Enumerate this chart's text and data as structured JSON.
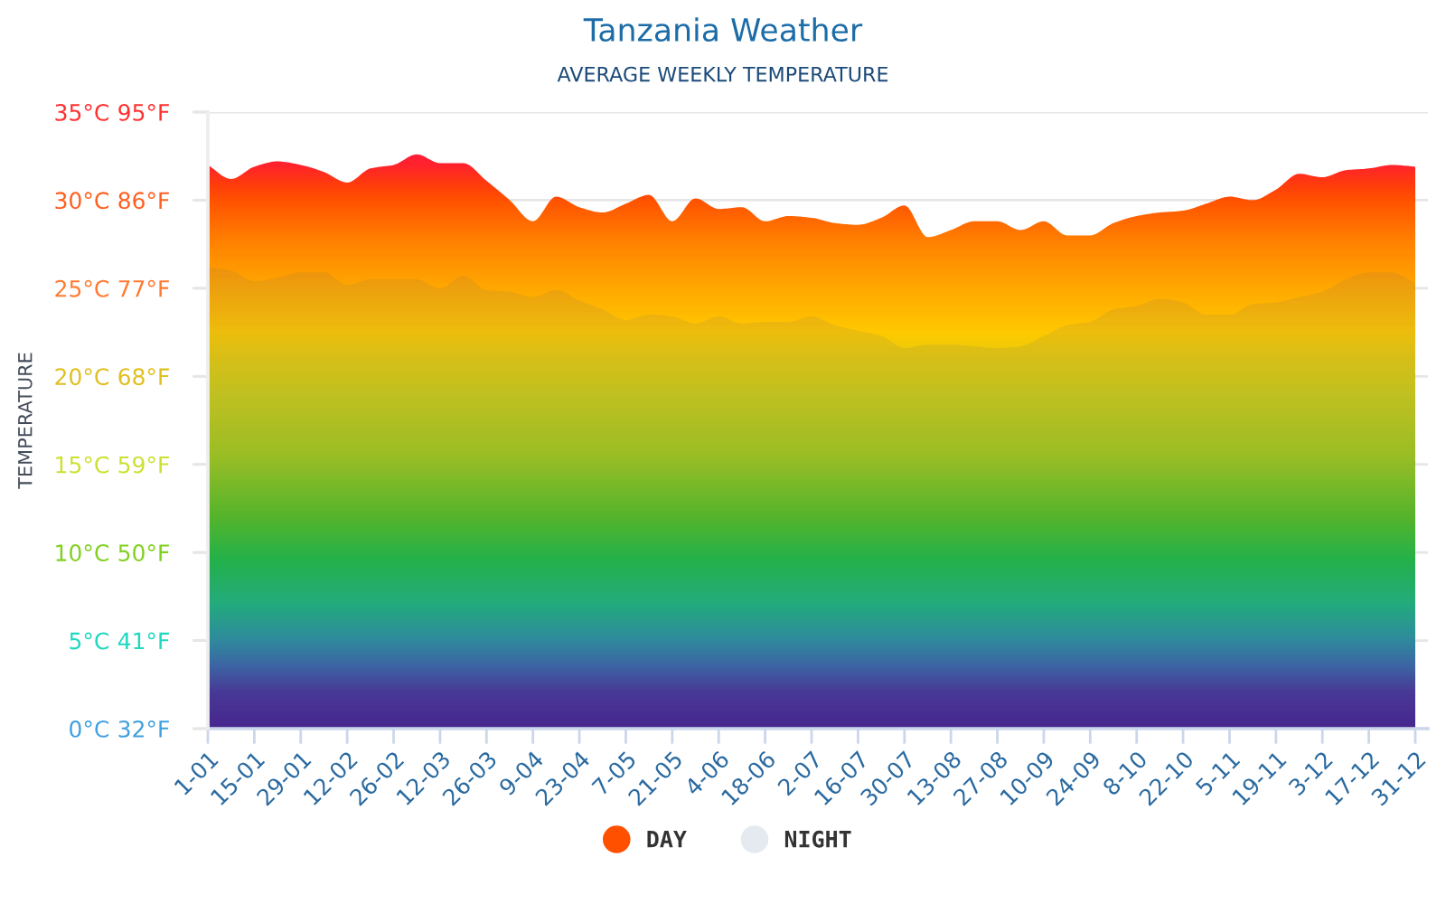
{
  "chart_data": {
    "type": "area",
    "title": "Tanzania Weather",
    "subtitle": "AVERAGE WEEKLY TEMPERATURE",
    "ylabel": "TEMPERATURE",
    "categories": [
      "1-01",
      null,
      "15-01",
      null,
      "29-01",
      null,
      "12-02",
      null,
      "26-02",
      null,
      "12-03",
      null,
      "26-03",
      null,
      "9-04",
      null,
      "23-04",
      null,
      "7-05",
      null,
      "21-05",
      null,
      "4-06",
      null,
      "18-06",
      null,
      "2-07",
      null,
      "16-07",
      null,
      "30-07",
      null,
      "13-08",
      null,
      "27-08",
      null,
      "10-09",
      null,
      "24-09",
      null,
      "8-10",
      null,
      "22-10",
      null,
      "5-11",
      null,
      "19-11",
      null,
      "3-12",
      null,
      "17-12",
      null,
      "31-12"
    ],
    "series": [
      {
        "name": "DAY",
        "color": "#ff5000",
        "values": [
          32.0,
          31.2,
          31.9,
          32.2,
          32.0,
          31.6,
          31.0,
          31.8,
          32.0,
          32.6,
          32.1,
          32.1,
          31.1,
          30.0,
          28.8,
          30.2,
          29.6,
          29.3,
          29.8,
          30.3,
          28.8,
          30.1,
          29.5,
          29.6,
          28.8,
          29.1,
          29.0,
          28.7,
          28.6,
          29.0,
          29.7,
          27.9,
          28.3,
          28.8,
          28.8,
          28.3,
          28.8,
          28.0,
          28.0,
          28.7,
          29.1,
          29.3,
          29.4,
          29.8,
          30.2,
          30.0,
          30.6,
          31.5,
          31.3,
          31.7,
          31.8,
          32.0,
          31.9
        ]
      },
      {
        "name": "NIGHT",
        "color": "#e5eaf0",
        "values": [
          26.2,
          26.0,
          25.4,
          25.6,
          25.9,
          25.9,
          25.2,
          25.5,
          25.5,
          25.5,
          25.0,
          25.7,
          24.9,
          24.8,
          24.5,
          24.9,
          24.3,
          23.8,
          23.2,
          23.5,
          23.4,
          23.0,
          23.4,
          23.0,
          23.1,
          23.1,
          23.4,
          22.9,
          22.6,
          22.3,
          21.6,
          21.8,
          21.8,
          21.7,
          21.6,
          21.7,
          22.3,
          22.9,
          23.1,
          23.8,
          24.0,
          24.4,
          24.2,
          23.5,
          23.5,
          24.1,
          24.2,
          24.5,
          24.8,
          25.5,
          25.9,
          25.9,
          25.3
        ]
      }
    ],
    "ylim": [
      0,
      35
    ],
    "yticks": [
      {
        "value": 0,
        "label": "0°C"
      },
      {
        "value": 5,
        "label": "5°C"
      },
      {
        "value": 10,
        "label": "10°C"
      },
      {
        "value": 15,
        "label": "15°C"
      },
      {
        "value": 20,
        "label": "20°C"
      },
      {
        "value": 25,
        "label": "25°C"
      },
      {
        "value": 30,
        "label": "30°C"
      },
      {
        "value": 35,
        "label": "35°C"
      }
    ],
    "y2lim": [
      32,
      95
    ],
    "y2ticks": [
      {
        "value": 32,
        "label": "32°F"
      },
      {
        "value": 41,
        "label": "41°F"
      },
      {
        "value": 50,
        "label": "50°F"
      },
      {
        "value": 59,
        "label": "59°F"
      },
      {
        "value": 68,
        "label": "68°F"
      },
      {
        "value": 77,
        "label": "77°F"
      },
      {
        "value": 86,
        "label": "86°F"
      },
      {
        "value": 95,
        "label": "95°F"
      }
    ],
    "grid": "y",
    "legend": "bottom"
  }
}
